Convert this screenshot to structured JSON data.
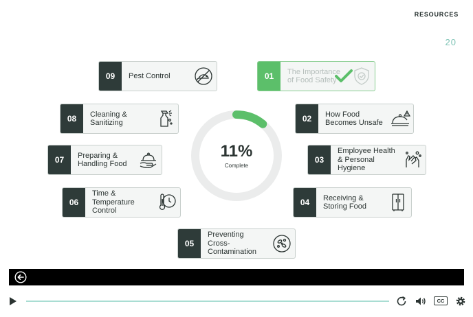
{
  "header": {
    "resources_label": "RESOURCES",
    "logo_text": "20"
  },
  "modules": [
    {
      "num": "01",
      "label": "The Importance of Food Safety",
      "icon": "shield-check-icon",
      "completed": true
    },
    {
      "num": "02",
      "label": "How Food Becomes Unsafe",
      "icon": "cloche-warning-icon",
      "completed": false
    },
    {
      "num": "03",
      "label": "Employee Health & Personal Hygiene",
      "icon": "hand-washing-icon",
      "completed": false
    },
    {
      "num": "04",
      "label": "Receiving & Storing Food",
      "icon": "refrigerator-icon",
      "completed": false
    },
    {
      "num": "05",
      "label": "Preventing Cross-Contamination",
      "icon": "bacteria-icon",
      "completed": false
    },
    {
      "num": "06",
      "label": "Time & Temperature Control",
      "icon": "thermometer-clock-icon",
      "completed": false
    },
    {
      "num": "07",
      "label": "Preparing & Handling Food",
      "icon": "serving-tray-icon",
      "completed": false
    },
    {
      "num": "08",
      "label": "Cleaning & Sanitizing",
      "icon": "spray-bottle-icon",
      "completed": false
    },
    {
      "num": "09",
      "label": "Pest Control",
      "icon": "no-rodent-icon",
      "completed": false
    }
  ],
  "progress": {
    "percent_label": "11%",
    "percent_value": 11,
    "status_label": "Complete"
  },
  "player": {
    "back_icon": "back-arrow-icon",
    "play_icon": "play-icon",
    "replay_icon": "replay-icon",
    "volume_icon": "volume-icon",
    "cc_icon": "closed-captions-icon",
    "cc_label": "CC",
    "settings_icon": "gear-icon",
    "track_color": "#a9ddd3"
  }
}
